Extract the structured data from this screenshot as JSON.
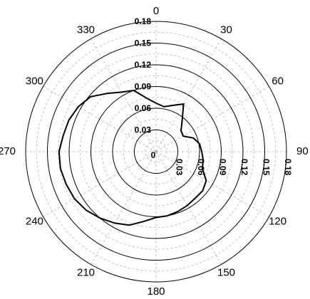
{
  "chart_data": {
    "type": "polar-line",
    "angle_ticks": [
      "0",
      "30",
      "60",
      "90",
      "120",
      "150",
      "180",
      "210",
      "240",
      "270",
      "300",
      "330"
    ],
    "angle_tick_values": [
      0,
      30,
      60,
      90,
      120,
      150,
      180,
      210,
      240,
      270,
      300,
      330
    ],
    "radial_ticks_vertical": [
      "0.18",
      "0.15",
      "0.12",
      "0.09",
      "0.06",
      "0.03"
    ],
    "radial_ticks_horizontal": [
      "0",
      "0.03",
      "0.06",
      "0.09",
      "0.12",
      "0.15",
      "0.18"
    ],
    "radial_tick_values": [
      0,
      0.03,
      0.06,
      0.09,
      0.12,
      0.15,
      0.18
    ],
    "rlim": [
      0,
      0.18
    ],
    "direction": "clockwise",
    "zero_location": "top",
    "grid": true,
    "series": [
      {
        "theta": [
          0,
          10,
          20,
          30,
          40,
          50,
          60,
          70,
          80,
          90,
          100,
          110,
          120,
          130,
          140,
          150,
          160,
          170,
          180,
          190,
          200,
          210,
          220,
          230,
          240,
          250,
          260,
          270,
          280,
          290,
          300,
          310,
          320,
          330,
          340,
          350,
          360
        ],
        "r": [
          0.067,
          0.063,
          0.068,
          0.076,
          0.056,
          0.045,
          0.043,
          0.055,
          0.061,
          0.063,
          0.066,
          0.068,
          0.08,
          0.084,
          0.084,
          0.086,
          0.088,
          0.09,
          0.091,
          0.098,
          0.108,
          0.114,
          0.12,
          0.126,
          0.13,
          0.132,
          0.134,
          0.134,
          0.13,
          0.128,
          0.124,
          0.118,
          0.105,
          0.095,
          0.09,
          0.075,
          0.067
        ]
      }
    ]
  }
}
